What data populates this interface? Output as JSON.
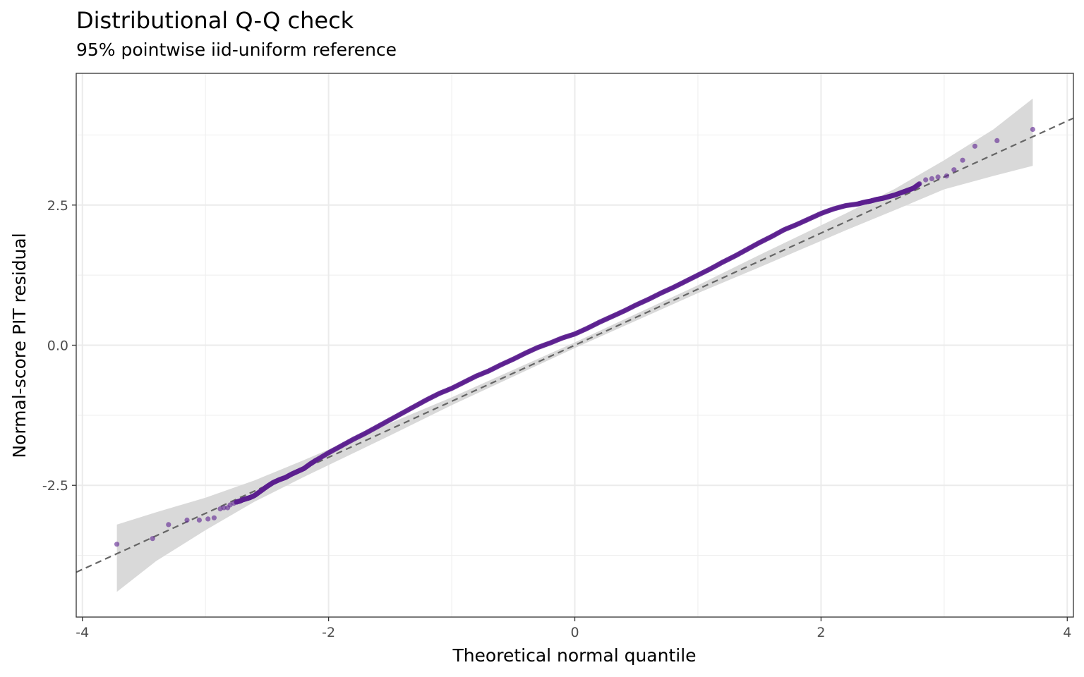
{
  "chart_data": {
    "type": "scatter",
    "title": "Distributional Q-Q check",
    "subtitle": "95% pointwise iid-uniform reference",
    "xlabel": "Theoretical normal quantile",
    "ylabel": "Normal-score PIT residual",
    "xlim": [
      -4.05,
      4.05
    ],
    "ylim": [
      -4.85,
      4.85
    ],
    "x_ticks": [
      -4,
      -2,
      0,
      2,
      4
    ],
    "x_tick_labels": [
      "-4",
      "-2",
      "0",
      "2",
      "4"
    ],
    "y_ticks": [
      -2.5,
      0.0,
      2.5
    ],
    "y_tick_labels": [
      "-2.5",
      "0.0",
      "2.5"
    ],
    "grid": true,
    "legend": "none",
    "reference_line": {
      "intercept": 0,
      "slope": 1,
      "style": "dashed",
      "color": "#666666"
    },
    "band": {
      "color": "#d9d9d9",
      "x": [
        -3.72,
        -3.4,
        -3.0,
        -2.6,
        -2.2,
        -1.5,
        -1.0,
        0.0,
        1.0,
        1.5,
        2.2,
        2.6,
        3.0,
        3.4,
        3.72
      ],
      "lower": [
        -4.4,
        -3.85,
        -3.3,
        -2.79,
        -2.35,
        -1.61,
        -1.07,
        -0.05,
        0.93,
        1.39,
        2.05,
        2.41,
        2.78,
        3.02,
        3.2
      ],
      "upper": [
        -3.2,
        -2.98,
        -2.72,
        -2.41,
        -2.05,
        -1.39,
        -0.93,
        0.05,
        1.07,
        1.61,
        2.35,
        2.79,
        3.3,
        3.85,
        4.4
      ]
    },
    "points": {
      "color": "#5b1f8f",
      "x": [
        -3.72,
        -3.43,
        -3.3,
        -3.15,
        -3.05,
        -2.98,
        -2.93,
        -2.88,
        -2.85,
        -2.82,
        -2.8,
        -2.77,
        -2.75,
        -2.72,
        -2.7,
        -2.67,
        -2.64,
        -2.6,
        -2.55,
        -2.5,
        -2.45,
        -2.4,
        -2.35,
        -2.3,
        -2.25,
        -2.2,
        -2.15,
        -2.1,
        -2.0,
        -1.9,
        -1.8,
        -1.7,
        -1.6,
        -1.5,
        -1.4,
        -1.3,
        -1.2,
        -1.1,
        -1.0,
        -0.9,
        -0.8,
        -0.7,
        -0.6,
        -0.5,
        -0.4,
        -0.3,
        -0.2,
        -0.1,
        0.0,
        0.1,
        0.2,
        0.3,
        0.4,
        0.5,
        0.6,
        0.7,
        0.8,
        0.9,
        1.0,
        1.1,
        1.2,
        1.3,
        1.4,
        1.5,
        1.6,
        1.7,
        1.8,
        1.9,
        2.0,
        2.1,
        2.2,
        2.3,
        2.35,
        2.4,
        2.45,
        2.5,
        2.55,
        2.6,
        2.65,
        2.7,
        2.75,
        2.8,
        2.85,
        2.9,
        2.95,
        3.02,
        3.08,
        3.15,
        3.25,
        3.43,
        3.72
      ],
      "y": [
        -3.55,
        -3.45,
        -3.2,
        -3.12,
        -3.12,
        -3.1,
        -3.08,
        -2.92,
        -2.9,
        -2.9,
        -2.85,
        -2.82,
        -2.8,
        -2.78,
        -2.76,
        -2.74,
        -2.72,
        -2.68,
        -2.6,
        -2.52,
        -2.45,
        -2.4,
        -2.36,
        -2.3,
        -2.25,
        -2.2,
        -2.12,
        -2.05,
        -1.92,
        -1.8,
        -1.68,
        -1.57,
        -1.45,
        -1.33,
        -1.21,
        -1.09,
        -0.97,
        -0.86,
        -0.77,
        -0.66,
        -0.55,
        -0.46,
        -0.35,
        -0.25,
        -0.14,
        -0.04,
        0.04,
        0.13,
        0.2,
        0.3,
        0.41,
        0.51,
        0.61,
        0.72,
        0.82,
        0.93,
        1.03,
        1.14,
        1.25,
        1.36,
        1.48,
        1.59,
        1.71,
        1.83,
        1.94,
        2.06,
        2.15,
        2.25,
        2.35,
        2.43,
        2.49,
        2.52,
        2.55,
        2.57,
        2.6,
        2.62,
        2.65,
        2.68,
        2.72,
        2.76,
        2.8,
        2.88,
        2.95,
        2.97,
        3.0,
        3.02,
        3.13,
        3.3,
        3.55,
        3.65,
        3.85
      ]
    }
  }
}
